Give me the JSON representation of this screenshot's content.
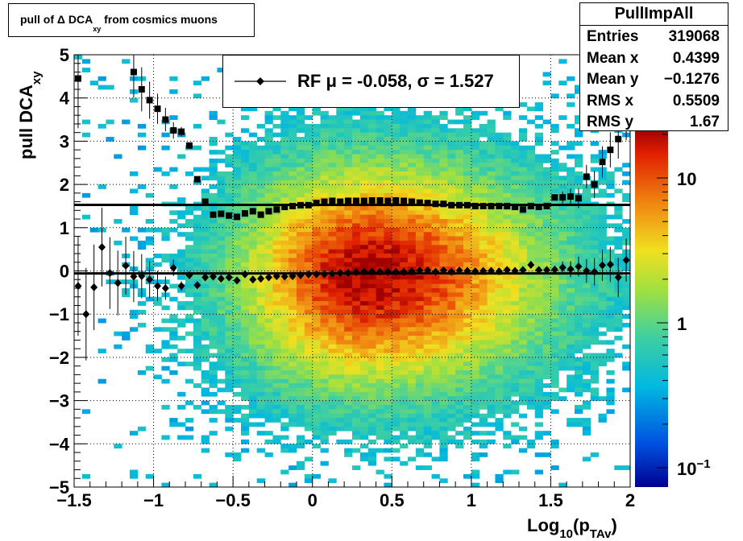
{
  "title": {
    "prefix": "pull of ",
    "delta": "Δ",
    "main": " DCA",
    "sub": "xy",
    "suffix": " from cosmics muons"
  },
  "stats": {
    "name": "PullImpAll",
    "rows": [
      {
        "label": "Entries",
        "value": "319068"
      },
      {
        "label": "Mean x",
        "value": "0.4399"
      },
      {
        "label": "Mean y",
        "value": "−0.1276"
      },
      {
        "label": "RMS x",
        "value": "0.5509"
      },
      {
        "label": "RMS y",
        "value": "1.67"
      }
    ]
  },
  "fit_legend": {
    "text": "RF μ = -0.058, σ =   1.527"
  },
  "axes": {
    "xlabel": {
      "main": "Log",
      "sub1": "10",
      "mid": "(p",
      "sub2": "TAv",
      "end": ")"
    },
    "ylabel": {
      "main": "pull DCA",
      "sub": "xy"
    },
    "xticks": [
      "−1.5",
      "−1",
      "−0.5",
      "0",
      "0.5",
      "1",
      "1.5",
      "2"
    ],
    "yticks": [
      "5",
      "4",
      "3",
      "2",
      "1",
      "0",
      "−1",
      "−2",
      "−3",
      "−4",
      "−5"
    ],
    "z_ticks": [
      {
        "base": "10",
        "exp": "−1"
      },
      {
        "base": "1",
        "exp": ""
      },
      {
        "base": "10",
        "exp": ""
      }
    ]
  },
  "colors": {
    "mean_marker": "#000000",
    "sigma_marker": "#000000"
  },
  "chart_data": {
    "type": "heatmap",
    "xlim": [
      -1.5,
      2.0
    ],
    "ylim": [
      -5,
      5
    ],
    "z_scale": "log",
    "grid": true,
    "legend_position": "top-center",
    "center_x": 0.35,
    "center_y": -0.1,
    "sigma_line_y": 1.527,
    "mean_line_y": -0.058,
    "series": [
      {
        "marker": "diamond",
        "x": [
          -1.475,
          -1.425,
          -1.375,
          -1.325,
          -1.275,
          -1.225,
          -1.175,
          -1.125,
          -1.075,
          -1.025,
          -0.975,
          -0.925,
          -0.875,
          -0.825,
          -0.775,
          -0.725,
          -0.675,
          -0.625,
          -0.575,
          -0.525,
          -0.475,
          -0.425,
          -0.375,
          -0.325,
          -0.275,
          -0.225,
          -0.175,
          -0.125,
          -0.075,
          -0.025,
          0.025,
          0.075,
          0.125,
          0.175,
          0.225,
          0.275,
          0.325,
          0.375,
          0.425,
          0.475,
          0.525,
          0.575,
          0.625,
          0.675,
          0.725,
          0.775,
          0.825,
          0.875,
          0.925,
          0.975,
          1.025,
          1.075,
          1.125,
          1.175,
          1.225,
          1.275,
          1.325,
          1.375,
          1.425,
          1.475,
          1.525,
          1.575,
          1.625,
          1.675,
          1.725,
          1.775,
          1.825,
          1.875,
          1.925,
          1.975
        ],
        "y": [
          -0.35,
          -1.0,
          -0.38,
          0.55,
          -0.05,
          -0.28,
          0.12,
          -0.13,
          -0.12,
          -0.2,
          -0.35,
          -0.4,
          0.07,
          -0.35,
          -0.1,
          -0.33,
          -0.15,
          -0.13,
          -0.18,
          -0.15,
          -0.22,
          -0.08,
          -0.2,
          -0.18,
          -0.15,
          -0.12,
          -0.13,
          -0.12,
          -0.1,
          -0.08,
          -0.08,
          -0.08,
          -0.06,
          -0.05,
          -0.05,
          -0.03,
          -0.02,
          -0.02,
          -0.02,
          -0.02,
          -0.02,
          -0.02,
          -0.01,
          0.01,
          0.01,
          -0.02,
          0.01,
          -0.02,
          0.01,
          0.0,
          -0.01,
          0.0,
          0.0,
          -0.01,
          0.02,
          0.0,
          0.02,
          0.14,
          0.02,
          0.02,
          0.03,
          0.08,
          0.04,
          0.1,
          0.0,
          -0.02,
          0.13,
          0.15,
          -0.15,
          0.25
        ]
      },
      {
        "marker": "square",
        "x": [
          -1.475,
          -1.125,
          -1.075,
          -1.025,
          -0.975,
          -0.925,
          -0.875,
          -0.825,
          -0.775,
          -0.725,
          -0.675,
          -0.625,
          -0.575,
          -0.525,
          -0.475,
          -0.425,
          -0.375,
          -0.325,
          -0.275,
          -0.225,
          -0.175,
          -0.125,
          -0.075,
          -0.025,
          0.025,
          0.075,
          0.125,
          0.175,
          0.225,
          0.275,
          0.325,
          0.375,
          0.425,
          0.475,
          0.525,
          0.575,
          0.625,
          0.675,
          0.725,
          0.775,
          0.825,
          0.875,
          0.925,
          0.975,
          1.025,
          1.075,
          1.125,
          1.175,
          1.225,
          1.275,
          1.325,
          1.375,
          1.425,
          1.475,
          1.525,
          1.575,
          1.625,
          1.675,
          1.725,
          1.775,
          1.825,
          1.875,
          1.925,
          1.975
        ],
        "y": [
          4.45,
          4.6,
          4.2,
          3.95,
          3.75,
          3.5,
          3.25,
          3.22,
          2.9,
          2.12,
          1.6,
          1.3,
          1.32,
          1.28,
          1.25,
          1.33,
          1.38,
          1.3,
          1.38,
          1.42,
          1.48,
          1.5,
          1.52,
          1.52,
          1.57,
          1.6,
          1.62,
          1.6,
          1.62,
          1.62,
          1.62,
          1.63,
          1.63,
          1.62,
          1.63,
          1.62,
          1.6,
          1.58,
          1.57,
          1.55,
          1.55,
          1.52,
          1.52,
          1.52,
          1.5,
          1.5,
          1.5,
          1.5,
          1.5,
          1.48,
          1.42,
          1.5,
          1.48,
          1.5,
          1.7,
          1.7,
          1.72,
          1.68,
          2.18,
          2.0,
          2.52,
          2.8,
          3.05,
          3.52
        ]
      }
    ]
  }
}
